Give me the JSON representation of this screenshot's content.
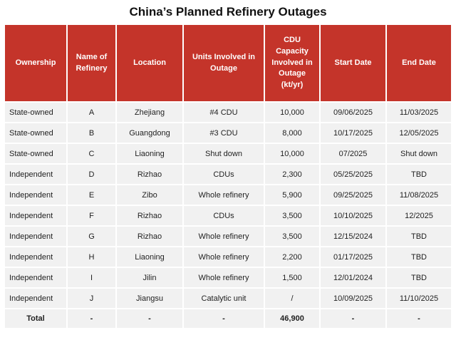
{
  "title": "China’s Planned Refinery Outages",
  "colors": {
    "header_bg": "#c4342a",
    "header_text": "#ffffff",
    "row_bg": "#f1f1f1",
    "body_text": "#1f1f1f"
  },
  "table": {
    "columns": [
      "Ownership",
      "Name of Refinery",
      "Location",
      "Units Involved in Outage",
      "CDU Capacity Involved in Outage (kt/yr)",
      "Start Date",
      "End Date"
    ],
    "rows": [
      [
        "State-owned",
        "A",
        "Zhejiang",
        "#4 CDU",
        "10,000",
        "09/06/2025",
        "11/03/2025"
      ],
      [
        "State-owned",
        "B",
        "Guangdong",
        "#3 CDU",
        "8,000",
        "10/17/2025",
        "12/05/2025"
      ],
      [
        "State-owned",
        "C",
        "Liaoning",
        "Shut down",
        "10,000",
        "07/2025",
        "Shut down"
      ],
      [
        "Independent",
        "D",
        "Rizhao",
        "CDUs",
        "2,300",
        "05/25/2025",
        "TBD"
      ],
      [
        "Independent",
        "E",
        "Zibo",
        "Whole refinery",
        "5,900",
        "09/25/2025",
        "11/08/2025"
      ],
      [
        "Independent",
        "F",
        "Rizhao",
        "CDUs",
        "3,500",
        "10/10/2025",
        "12/2025"
      ],
      [
        "Independent",
        "G",
        "Rizhao",
        "Whole refinery",
        "3,500",
        "12/15/2024",
        "TBD"
      ],
      [
        "Independent",
        "H",
        "Liaoning",
        "Whole refinery",
        "2,200",
        "01/17/2025",
        "TBD"
      ],
      [
        "Independent",
        "I",
        "Jilin",
        "Whole refinery",
        "1,500",
        "12/01/2024",
        "TBD"
      ],
      [
        "Independent",
        "J",
        "Jiangsu",
        "Catalytic unit",
        "/",
        "10/09/2025",
        "11/10/2025"
      ]
    ],
    "total_row": [
      "Total",
      "-",
      "-",
      "-",
      "46,900",
      "-",
      "-"
    ]
  }
}
